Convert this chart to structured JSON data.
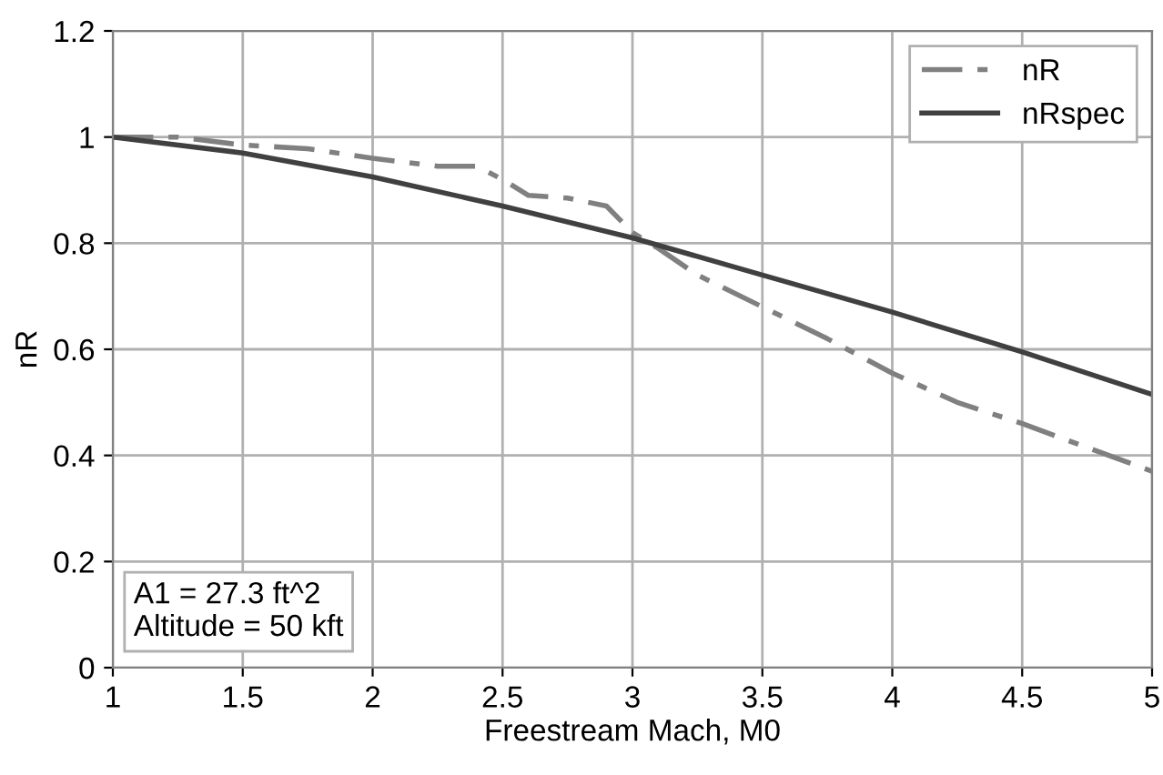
{
  "chart_data": {
    "type": "line",
    "xlabel": "Freestream Mach, M0",
    "ylabel": "nR",
    "xlim": [
      1,
      5
    ],
    "ylim": [
      0,
      1.2
    ],
    "xticks": [
      1,
      1.5,
      2,
      2.5,
      3,
      3.5,
      4,
      4.5,
      5
    ],
    "yticks": [
      0,
      0.2,
      0.4,
      0.6,
      0.8,
      1,
      1.2
    ],
    "grid": true,
    "legend": "top right",
    "annotations": [
      "A1 = 27.3 ft^2\nAltitude = 50 kft"
    ],
    "series": [
      {
        "name": "nR",
        "color": "#808080",
        "line_style": "dashdot",
        "x": [
          1,
          1.25,
          1.5,
          1.75,
          2,
          2.25,
          2.4,
          2.5,
          2.6,
          2.75,
          2.9,
          3,
          3.1,
          3.25,
          3.5,
          3.75,
          4,
          4.25,
          4.5,
          4.75,
          5
        ],
        "values": [
          1,
          1,
          0.985,
          0.978,
          0.96,
          0.945,
          0.945,
          0.92,
          0.89,
          0.885,
          0.87,
          0.82,
          0.79,
          0.74,
          0.68,
          0.62,
          0.555,
          0.5,
          0.46,
          0.415,
          0.37
        ]
      },
      {
        "name": "nRspec",
        "color": "#404040",
        "line_style": "solid",
        "x": [
          1,
          1.5,
          2,
          2.5,
          3,
          3.5,
          4,
          4.5,
          5
        ],
        "values": [
          1,
          0.97,
          0.925,
          0.87,
          0.81,
          0.74,
          0.67,
          0.595,
          0.515
        ]
      }
    ]
  }
}
